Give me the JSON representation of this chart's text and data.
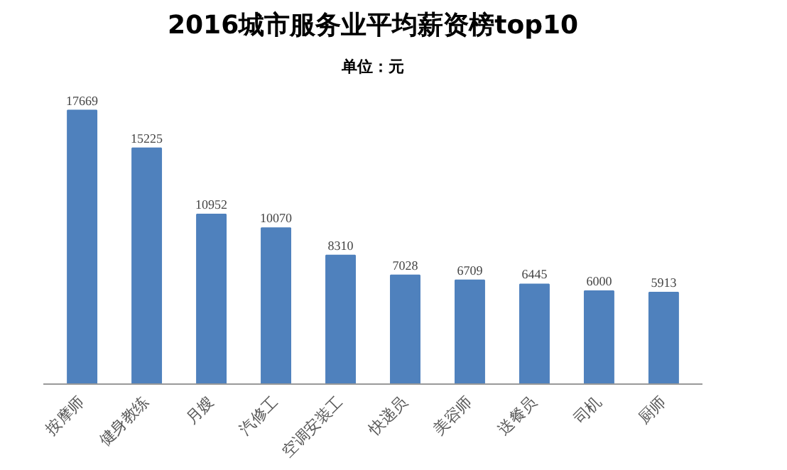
{
  "chart_data": {
    "type": "bar",
    "title": "2016城市服务业平均薪资榜top10",
    "subtitle": "单位：元",
    "categories": [
      "按摩师",
      "健身教练",
      "月嫂",
      "汽修工",
      "空调安装工",
      "快递员",
      "美容师",
      "送餐员",
      "司机",
      "厨师"
    ],
    "values": [
      17669,
      15225,
      10952,
      10070,
      8310,
      7028,
      6709,
      6445,
      6000,
      5913
    ],
    "color": "#4f81bd",
    "data_labels": true,
    "grid": false
  }
}
